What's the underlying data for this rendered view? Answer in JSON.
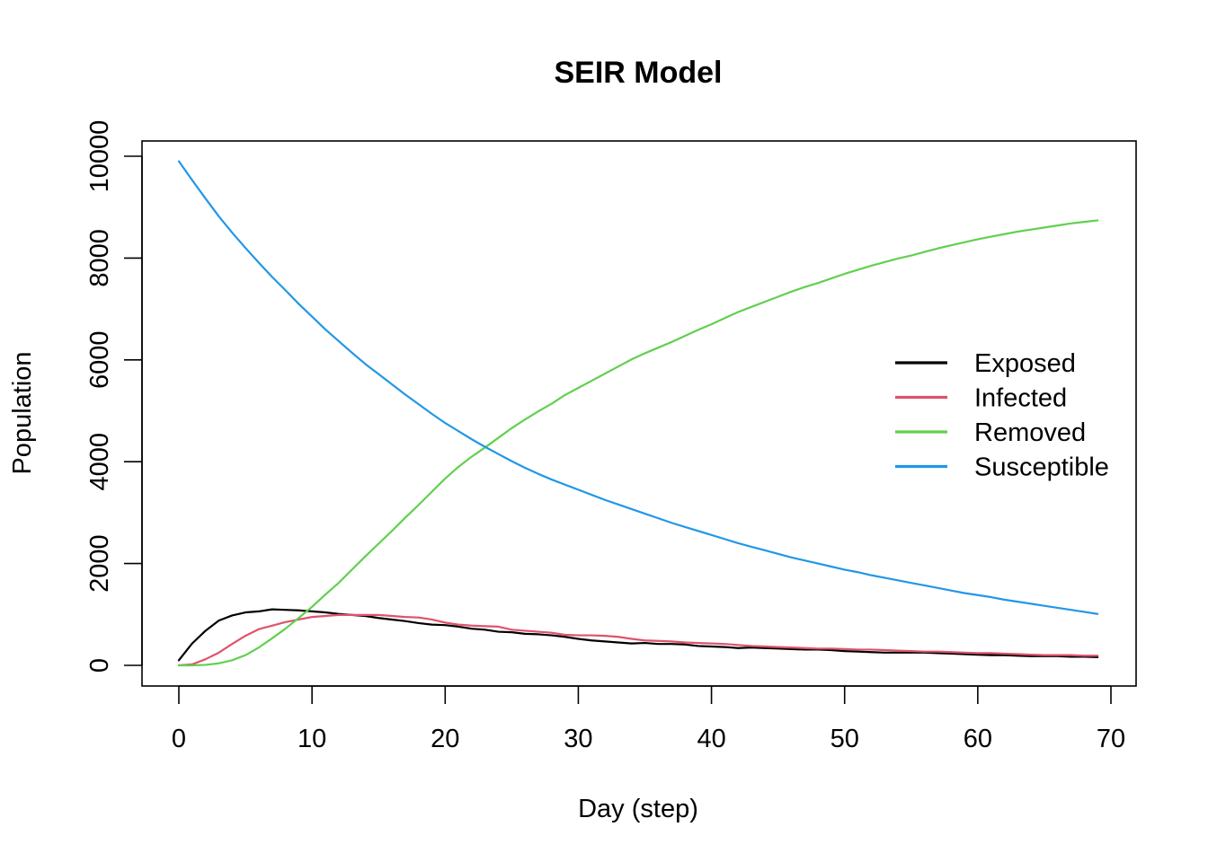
{
  "chart_data": {
    "type": "line",
    "title": "SEIR Model",
    "xlabel": "Day (step)",
    "ylabel": "Population",
    "xlim": [
      0,
      70
    ],
    "ylim": [
      0,
      10000
    ],
    "x_ticks": [
      0,
      10,
      20,
      30,
      40,
      50,
      60,
      70
    ],
    "y_ticks": [
      0,
      2000,
      4000,
      6000,
      8000,
      10000
    ],
    "grid": false,
    "legend": "right",
    "x": [
      0,
      1,
      2,
      3,
      4,
      5,
      6,
      7,
      8,
      9,
      10,
      11,
      12,
      13,
      14,
      15,
      16,
      17,
      18,
      19,
      20,
      21,
      22,
      23,
      24,
      25,
      26,
      27,
      28,
      29,
      30,
      31,
      32,
      33,
      34,
      35,
      36,
      37,
      38,
      39,
      40,
      41,
      42,
      43,
      44,
      45,
      46,
      47,
      48,
      49,
      50,
      51,
      52,
      53,
      54,
      55,
      56,
      57,
      58,
      59,
      60,
      61,
      62,
      63,
      64,
      65,
      66,
      67,
      68,
      69
    ],
    "series": [
      {
        "name": "Exposed",
        "color": "#000000",
        "values": [
          100,
          430,
          680,
          880,
          980,
          1040,
          1060,
          1100,
          1090,
          1080,
          1060,
          1040,
          1010,
          990,
          970,
          930,
          900,
          870,
          830,
          800,
          790,
          760,
          720,
          700,
          660,
          650,
          620,
          610,
          590,
          560,
          520,
          490,
          470,
          450,
          430,
          440,
          420,
          420,
          410,
          380,
          370,
          360,
          340,
          350,
          340,
          330,
          320,
          310,
          310,
          300,
          280,
          270,
          260,
          250,
          250,
          250,
          250,
          240,
          230,
          220,
          210,
          200,
          200,
          190,
          180,
          180,
          180,
          170,
          170,
          160
        ]
      },
      {
        "name": "Infected",
        "color": "#DF536B",
        "values": [
          0,
          20,
          120,
          250,
          420,
          580,
          710,
          780,
          850,
          900,
          950,
          970,
          990,
          990,
          990,
          990,
          970,
          950,
          940,
          900,
          840,
          800,
          780,
          770,
          760,
          700,
          680,
          660,
          640,
          600,
          590,
          590,
          580,
          560,
          520,
          490,
          480,
          470,
          450,
          440,
          430,
          420,
          400,
          380,
          370,
          360,
          350,
          340,
          330,
          330,
          320,
          310,
          310,
          300,
          290,
          280,
          270,
          270,
          260,
          250,
          240,
          240,
          230,
          220,
          210,
          200,
          200,
          200,
          190,
          190
        ]
      },
      {
        "name": "Removed",
        "color": "#61D04F",
        "values": [
          0,
          0,
          10,
          40,
          100,
          200,
          350,
          530,
          720,
          930,
          1150,
          1390,
          1620,
          1880,
          2140,
          2390,
          2640,
          2900,
          3150,
          3410,
          3670,
          3900,
          4100,
          4280,
          4470,
          4660,
          4830,
          4990,
          5140,
          5310,
          5450,
          5590,
          5730,
          5870,
          6010,
          6130,
          6240,
          6350,
          6470,
          6590,
          6700,
          6820,
          6940,
          7040,
          7140,
          7240,
          7340,
          7430,
          7510,
          7600,
          7690,
          7770,
          7850,
          7920,
          7990,
          8050,
          8120,
          8190,
          8250,
          8310,
          8370,
          8420,
          8470,
          8520,
          8560,
          8600,
          8640,
          8680,
          8710,
          8740
        ]
      },
      {
        "name": "Susceptible",
        "color": "#2297E6",
        "values": [
          9900,
          9530,
          9170,
          8820,
          8500,
          8200,
          7910,
          7630,
          7370,
          7100,
          6850,
          6600,
          6370,
          6140,
          5920,
          5720,
          5520,
          5320,
          5130,
          4940,
          4760,
          4600,
          4440,
          4290,
          4150,
          4010,
          3880,
          3760,
          3650,
          3550,
          3450,
          3350,
          3250,
          3160,
          3070,
          2980,
          2890,
          2800,
          2720,
          2640,
          2560,
          2480,
          2400,
          2330,
          2260,
          2190,
          2120,
          2060,
          2000,
          1940,
          1880,
          1830,
          1770,
          1720,
          1670,
          1620,
          1570,
          1520,
          1470,
          1420,
          1380,
          1340,
          1290,
          1250,
          1210,
          1170,
          1130,
          1090,
          1050,
          1010
        ]
      }
    ]
  }
}
